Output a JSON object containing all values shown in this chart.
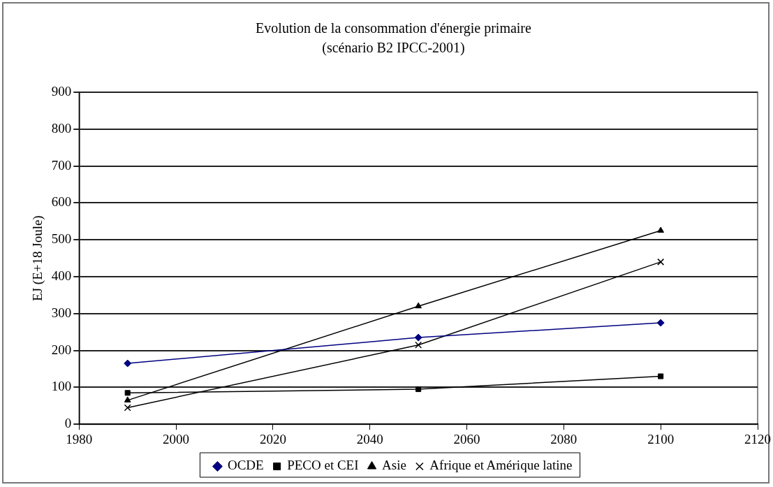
{
  "chart_data": {
    "type": "line",
    "title": "Evolution de la consommation d'énergie primaire",
    "subtitle": "(scénario B2 IPCC-2001)",
    "ylabel": "EJ (E+18 Joule)",
    "x": [
      1990,
      2050,
      2100
    ],
    "series": [
      {
        "name": "OCDE",
        "color": "#000080",
        "values": [
          165,
          235,
          275
        ],
        "marker": "diamond"
      },
      {
        "name": "PECO et CEI",
        "color": "#000000",
        "values": [
          85,
          95,
          130
        ],
        "marker": "square"
      },
      {
        "name": "Asie",
        "color": "#000000",
        "values": [
          65,
          320,
          525
        ],
        "marker": "triangle"
      },
      {
        "name": "Afrique et Amérique latine",
        "color": "#000000",
        "values": [
          45,
          215,
          440
        ],
        "marker": "cross"
      }
    ],
    "xlim": [
      1980,
      2120
    ],
    "xticks": [
      1980,
      2000,
      2020,
      2040,
      2060,
      2080,
      2100,
      2120
    ],
    "ylim": [
      0,
      900
    ],
    "yticks": [
      0,
      100,
      200,
      300,
      400,
      500,
      600,
      700,
      800,
      900
    ],
    "grid": "y",
    "legend": "bottom",
    "line_style": "solid"
  }
}
